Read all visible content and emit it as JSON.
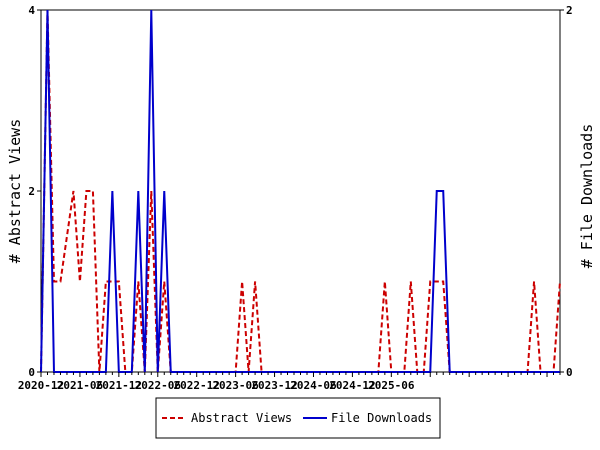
{
  "chart_data": {
    "type": "line",
    "title": "",
    "xlabel": "",
    "ylabel_left": "# Abstract Views",
    "ylabel_right": "# File Downloads",
    "ylim_left": [
      0,
      4
    ],
    "ylim_right": [
      0,
      2
    ],
    "yticks_left": [
      "0",
      "2",
      "4"
    ],
    "yticks_right": [
      "0",
      "2"
    ],
    "x_tick_labels": [
      "2020-12",
      "2021-06",
      "2021-12",
      "2022-06",
      "2022-12",
      "2023-06",
      "2023-12",
      "2024-06",
      "2024-12",
      "2025-06"
    ],
    "x_start": "2020-12",
    "grid": false,
    "legend_placement": "bottom",
    "series": [
      {
        "name": "Abstract Views",
        "axis": "left",
        "color": "#cc0000",
        "style": "dashed",
        "values": [
          0,
          4,
          1,
          1,
          1.5,
          2,
          1,
          2,
          2,
          0,
          1,
          1,
          1,
          0,
          0,
          1,
          0,
          2,
          0,
          1,
          0,
          0,
          0,
          0,
          0,
          0,
          0,
          0,
          0,
          0,
          0,
          1,
          0,
          1,
          0,
          0,
          0,
          0,
          0,
          0,
          0,
          0,
          0,
          0,
          0,
          0,
          0,
          0,
          0,
          0,
          0,
          0,
          0,
          1,
          0,
          0,
          0,
          1,
          0,
          0,
          1,
          1,
          1,
          0,
          0,
          0,
          0,
          0,
          0,
          0,
          0,
          0,
          0,
          0,
          0,
          0,
          1,
          0,
          0,
          0,
          1
        ]
      },
      {
        "name": "File Downloads",
        "axis": "right",
        "color": "#0000cc",
        "style": "solid",
        "values": [
          0,
          2,
          0,
          0,
          0,
          0,
          0,
          0,
          0,
          0,
          0,
          1,
          0,
          0,
          0,
          1,
          0,
          2,
          0,
          1,
          0,
          0,
          0,
          0,
          0,
          0,
          0,
          0,
          0,
          0,
          0,
          0,
          0,
          0,
          0,
          0,
          0,
          0,
          0,
          0,
          0,
          0,
          0,
          0,
          0,
          0,
          0,
          0,
          0,
          0,
          0,
          0,
          0,
          0,
          0,
          0,
          0,
          0,
          0,
          0,
          0,
          1,
          1,
          0,
          0,
          0,
          0,
          0,
          0,
          0,
          0,
          0,
          0,
          0,
          0,
          0,
          0,
          0,
          0,
          0,
          0
        ]
      }
    ]
  }
}
